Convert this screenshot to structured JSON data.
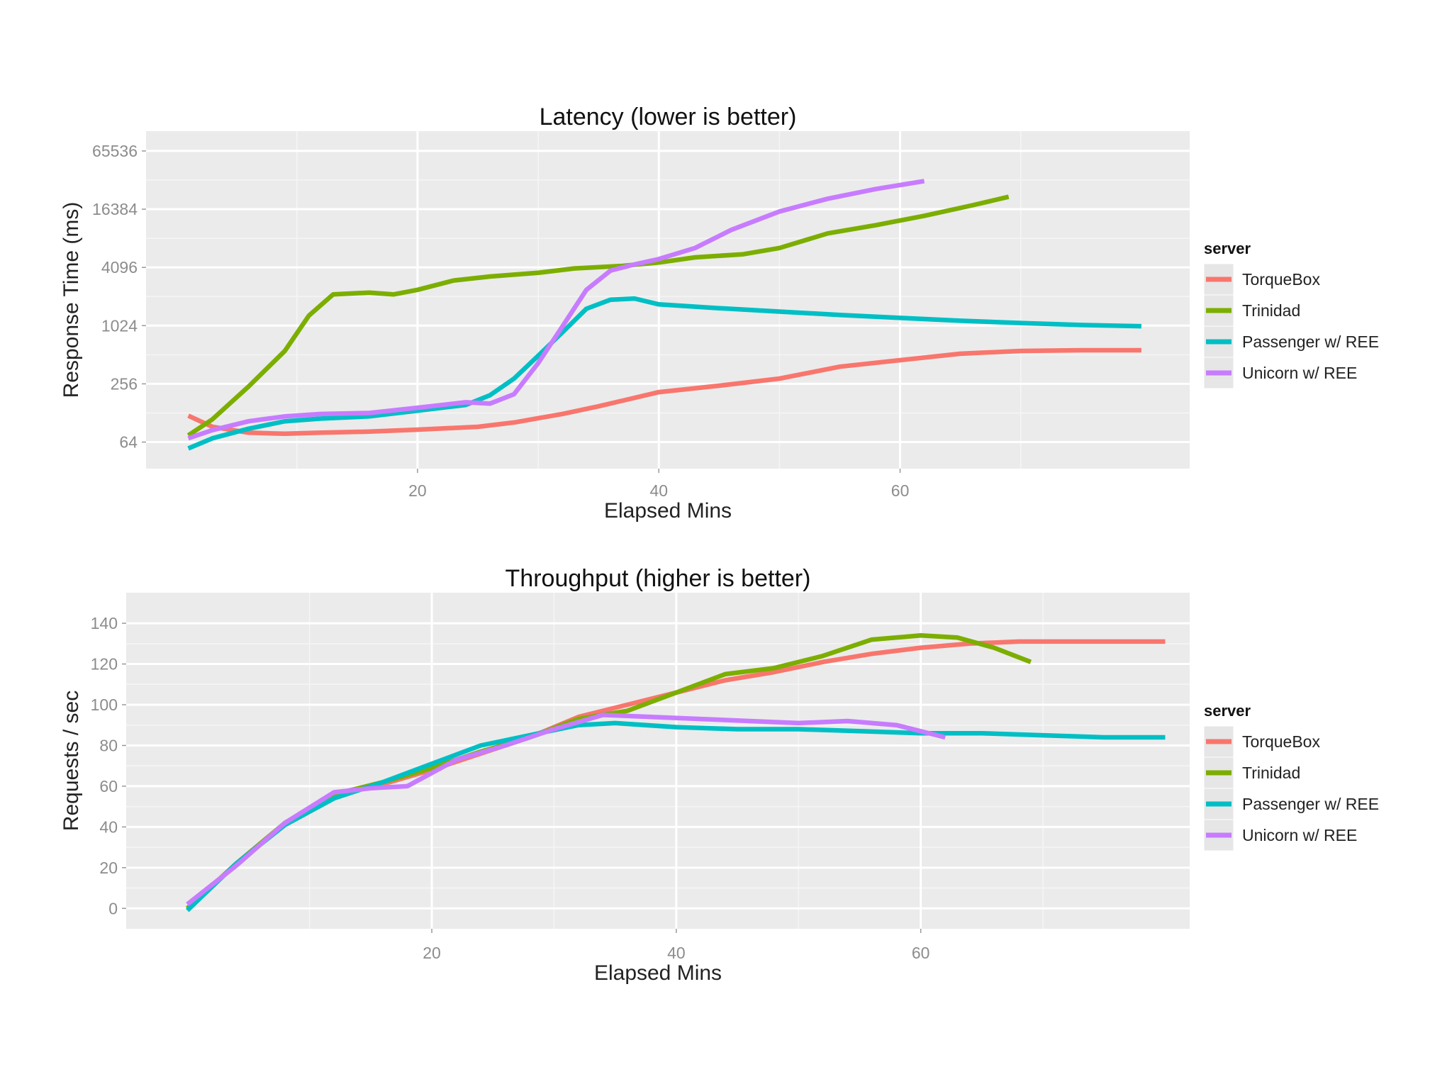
{
  "chart_data": [
    {
      "type": "line",
      "title": "Latency (lower is better)",
      "xlabel": "Elapsed Mins",
      "ylabel": "Response Time (ms)",
      "y_scale": "log2",
      "xlim": [
        -2.5,
        84
      ],
      "ylim": [
        34,
        105000
      ],
      "x_ticks": [
        20,
        40,
        60
      ],
      "y_ticks": [
        64,
        256,
        1024,
        4096,
        16384,
        65536
      ],
      "grid": true,
      "legend": {
        "title": "server",
        "position": "right"
      },
      "series": [
        {
          "name": "TorqueBox",
          "color": "#F8766D",
          "x": [
            1,
            3,
            6,
            9,
            12,
            16,
            20,
            25,
            28,
            32,
            35,
            40,
            45,
            50,
            55,
            60,
            65,
            70,
            75,
            80
          ],
          "y": [
            120,
            92,
            80,
            78,
            80,
            82,
            86,
            92,
            102,
            125,
            150,
            210,
            245,
            290,
            385,
            450,
            525,
            560,
            570,
            570
          ]
        },
        {
          "name": "Trinidad",
          "color": "#7CAE00",
          "x": [
            1,
            3,
            6,
            9,
            11,
            13,
            16,
            18,
            20,
            23,
            26,
            30,
            33,
            37,
            40,
            43,
            47,
            50,
            54,
            58,
            62,
            66,
            69
          ],
          "y": [
            75,
            110,
            240,
            560,
            1300,
            2150,
            2250,
            2150,
            2400,
            3000,
            3300,
            3600,
            4000,
            4250,
            4600,
            5200,
            5600,
            6500,
            9200,
            11200,
            14000,
            18000,
            22000
          ]
        },
        {
          "name": "Passenger w/ REE",
          "color": "#00BFC4",
          "x": [
            1,
            3,
            6,
            9,
            12,
            16,
            20,
            24,
            26,
            28,
            30,
            32,
            34,
            36,
            38,
            40,
            45,
            50,
            55,
            60,
            65,
            70,
            75,
            80
          ],
          "y": [
            55,
            70,
            88,
            105,
            112,
            118,
            135,
            155,
            195,
            290,
            500,
            870,
            1530,
            1900,
            1950,
            1700,
            1550,
            1430,
            1320,
            1230,
            1150,
            1090,
            1040,
            1010
          ]
        },
        {
          "name": "Unicorn w/ REE",
          "color": "#C77CFF",
          "x": [
            1,
            3,
            6,
            9,
            12,
            16,
            20,
            24,
            26,
            28,
            30,
            32,
            34,
            36,
            38,
            40,
            43,
            46,
            50,
            54,
            58,
            62
          ],
          "y": [
            70,
            85,
            105,
            118,
            125,
            128,
            145,
            165,
            160,
            200,
            420,
            1000,
            2400,
            3800,
            4400,
            5000,
            6500,
            10000,
            15500,
            21000,
            26500,
            32000
          ]
        }
      ]
    },
    {
      "type": "line",
      "title": "Throughput (higher is better)",
      "xlabel": "Elapsed Mins",
      "ylabel": "Requests / sec",
      "xlim": [
        -5,
        82
      ],
      "ylim": [
        -10,
        155
      ],
      "x_ticks": [
        20,
        40,
        60
      ],
      "y_ticks": [
        0,
        20,
        40,
        60,
        80,
        100,
        120,
        140
      ],
      "grid": true,
      "legend": {
        "title": "server",
        "position": "right"
      },
      "series": [
        {
          "name": "TorqueBox",
          "color": "#F8766D",
          "x": [
            0,
            4,
            8,
            12,
            16,
            20,
            24,
            28,
            32,
            36,
            40,
            44,
            48,
            52,
            56,
            60,
            64,
            68,
            72,
            76,
            80
          ],
          "y": [
            0,
            22,
            42,
            56,
            61,
            68,
            76,
            84,
            94,
            100,
            106,
            112,
            116,
            121,
            125,
            128,
            130,
            131,
            131,
            131,
            131
          ]
        },
        {
          "name": "Trinidad",
          "color": "#7CAE00",
          "x": [
            0,
            4,
            8,
            12,
            16,
            20,
            24,
            28,
            32,
            36,
            40,
            44,
            48,
            52,
            56,
            60,
            63,
            66,
            69
          ],
          "y": [
            0,
            22,
            42,
            56,
            62,
            69,
            77,
            84,
            93,
            97,
            106,
            115,
            118,
            124,
            132,
            134,
            133,
            128,
            121
          ]
        },
        {
          "name": "Passenger w/ REE",
          "color": "#00BFC4",
          "x": [
            0,
            4,
            8,
            12,
            16,
            20,
            24,
            28,
            32,
            35,
            40,
            45,
            50,
            55,
            60,
            65,
            70,
            75,
            80
          ],
          "y": [
            -1,
            22,
            41,
            54,
            62,
            71,
            80,
            85,
            90,
            91,
            89,
            88,
            88,
            87,
            86,
            86,
            85,
            84,
            84
          ]
        },
        {
          "name": "Unicorn w/ REE",
          "color": "#C77CFF",
          "x": [
            0,
            4,
            8,
            12,
            15,
            18,
            22,
            26,
            30,
            34,
            38,
            42,
            46,
            50,
            54,
            58,
            62
          ],
          "y": [
            2,
            21,
            42,
            57,
            59,
            60,
            73,
            80,
            88,
            95,
            94,
            93,
            92,
            91,
            92,
            90,
            84
          ]
        }
      ]
    }
  ]
}
